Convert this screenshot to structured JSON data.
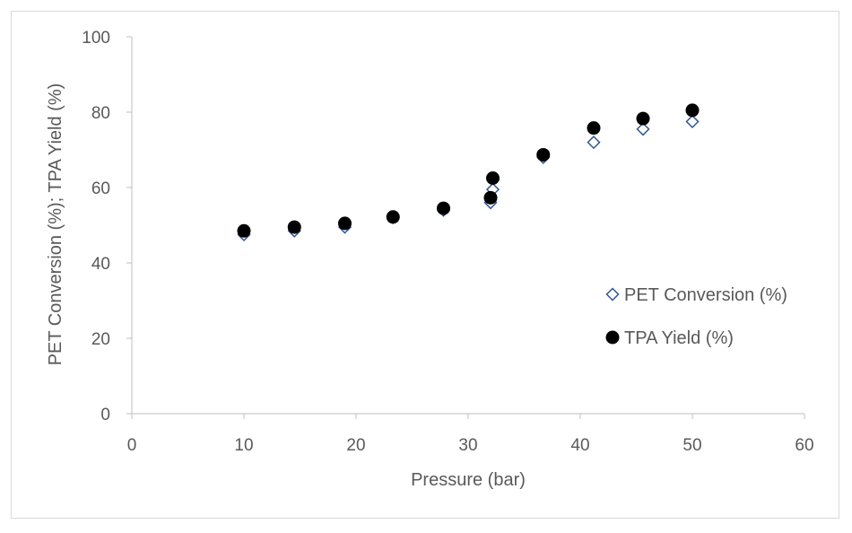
{
  "chart_data": {
    "type": "scatter",
    "title": "",
    "xlabel": "Pressure (bar)",
    "ylabel": "PET Conversion (%); TPA Yield (%)",
    "xlim": [
      0,
      60
    ],
    "ylim": [
      0,
      100
    ],
    "x_ticks": [
      0,
      10,
      20,
      30,
      40,
      50,
      60
    ],
    "y_ticks": [
      0,
      20,
      40,
      60,
      80,
      100
    ],
    "grid": false,
    "legend_position": "right",
    "series": [
      {
        "name": "PET Conversion (%)",
        "marker": "diamond-open",
        "color": "#2f5597",
        "points": [
          [
            10,
            47.5
          ],
          [
            14.5,
            48.5
          ],
          [
            19,
            49.5
          ],
          [
            23.3,
            52
          ],
          [
            27.8,
            54
          ],
          [
            32,
            56
          ],
          [
            32.2,
            59.5
          ],
          [
            36.7,
            68
          ],
          [
            41.2,
            72
          ],
          [
            45.6,
            75.5
          ],
          [
            50,
            77.5
          ]
        ]
      },
      {
        "name": "TPA Yield (%)",
        "marker": "circle-filled",
        "color": "#000000",
        "points": [
          [
            10,
            48.5
          ],
          [
            14.5,
            49.5
          ],
          [
            19,
            50.5
          ],
          [
            23.3,
            52.2
          ],
          [
            27.8,
            54.5
          ],
          [
            32,
            57.3
          ],
          [
            32.2,
            62.5
          ],
          [
            36.7,
            68.7
          ],
          [
            41.2,
            75.8
          ],
          [
            45.6,
            78.3
          ],
          [
            50,
            80.5
          ]
        ]
      }
    ]
  }
}
